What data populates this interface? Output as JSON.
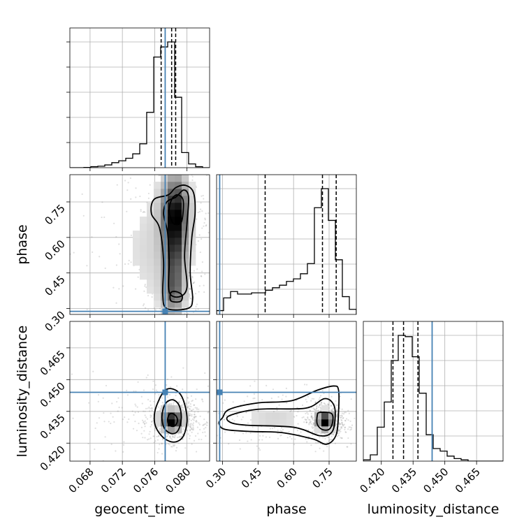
{
  "chart_data": {
    "type": "corner",
    "parameters": [
      "geocent_time",
      "phase",
      "luminosity_distance"
    ],
    "colors": {
      "truth": "#4682b4",
      "hist": "#000000",
      "contour": "#000000",
      "grid": "#b0b0b0",
      "scatter": "#808080"
    },
    "grid": true,
    "axes": {
      "geocent_time": {
        "range": [
          0.0655,
          0.0828
        ],
        "ticks": [
          0.068,
          0.072,
          0.076,
          0.08
        ],
        "tick_labels": [
          "0.068",
          "0.072",
          "0.076",
          "0.080"
        ],
        "label": "geocent_time"
      },
      "phase": {
        "range": [
          0.275,
          0.865
        ],
        "ticks": [
          0.3,
          0.45,
          0.6,
          0.75
        ],
        "tick_labels": [
          "0.30",
          "0.45",
          "0.60",
          "0.75"
        ],
        "label": "phase"
      },
      "luminosity_distance": {
        "range": [
          0.4115,
          0.4775
        ],
        "ticks": [
          0.42,
          0.435,
          0.45,
          0.465
        ],
        "tick_labels": [
          "0.420",
          "0.435",
          "0.450",
          "0.465"
        ],
        "label": "luminosity_distance"
      }
    },
    "truths": {
      "geocent_time": 0.0773,
      "phase": 0.288,
      "luminosity_distance": 0.444
    },
    "histograms": {
      "geocent_time": {
        "edges": [
          0.0655,
          0.06636,
          0.06723,
          0.06809,
          0.06896,
          0.06982,
          0.07069,
          0.07155,
          0.07242,
          0.07328,
          0.07415,
          0.07501,
          0.07588,
          0.07674,
          0.07761,
          0.07847,
          0.07934,
          0.0802,
          0.08107,
          0.08193,
          0.0828
        ],
        "counts": [
          0.0,
          0.0,
          0.002,
          0.008,
          0.012,
          0.022,
          0.04,
          0.055,
          0.075,
          0.11,
          0.19,
          0.44,
          0.88,
          0.96,
          1.0,
          0.56,
          0.12,
          0.03,
          0.008,
          0.0
        ],
        "quantiles": [
          0.0768,
          0.0781,
          0.0786
        ]
      },
      "phase": {
        "edges": [
          0.275,
          0.3045,
          0.334,
          0.3635,
          0.393,
          0.4225,
          0.452,
          0.4815,
          0.511,
          0.5405,
          0.57,
          0.5995,
          0.629,
          0.6585,
          0.688,
          0.7175,
          0.747,
          0.7765,
          0.806,
          0.8355,
          0.865
        ],
        "counts": [
          0.03,
          0.13,
          0.18,
          0.16,
          0.16,
          0.17,
          0.17,
          0.19,
          0.21,
          0.23,
          0.26,
          0.28,
          0.32,
          0.4,
          0.84,
          0.99,
          0.74,
          0.43,
          0.14,
          0.04
        ],
        "quantiles": [
          0.48,
          0.722,
          0.78
        ]
      },
      "luminosity_distance": {
        "edges": [
          0.4115,
          0.4148,
          0.4181,
          0.4214,
          0.4247,
          0.428,
          0.4313,
          0.4346,
          0.4379,
          0.4412,
          0.4445,
          0.4478,
          0.4511,
          0.4544,
          0.4577,
          0.461,
          0.4643,
          0.4676,
          0.4709,
          0.4742,
          0.4775
        ],
        "counts": [
          0.01,
          0.05,
          0.27,
          0.47,
          0.8,
          1.0,
          0.99,
          0.83,
          0.54,
          0.21,
          0.1,
          0.08,
          0.04,
          0.02,
          0.01,
          0.0,
          0.0,
          0.0,
          0.0,
          0.0
        ],
        "quantiles": [
          0.4255,
          0.4305,
          0.4373
        ]
      }
    },
    "densities": [
      {
        "x": "geocent_time",
        "y": "phase",
        "core": [
          [
            0.0786,
            0.72,
            0.0012,
            0.11,
            0.6
          ],
          [
            0.0784,
            0.5,
            0.0009,
            0.13,
            0.4
          ],
          [
            0.0783,
            0.36,
            0.001,
            0.06,
            0.22
          ],
          [
            0.0765,
            0.55,
            0.004,
            0.22,
            0.2
          ]
        ],
        "contours": [
          [
            [
              0.0798,
              0.82
            ],
            [
              0.0808,
              0.79
            ],
            [
              0.081,
              0.7
            ],
            [
              0.0806,
              0.6
            ],
            [
              0.0804,
              0.45
            ],
            [
              0.0807,
              0.34
            ],
            [
              0.0801,
              0.3
            ],
            [
              0.0775,
              0.3
            ],
            [
              0.077,
              0.36
            ],
            [
              0.0771,
              0.5
            ],
            [
              0.0766,
              0.64
            ],
            [
              0.0756,
              0.7
            ],
            [
              0.0759,
              0.76
            ],
            [
              0.0777,
              0.78
            ],
            [
              0.0786,
              0.81
            ]
          ],
          [
            [
              0.0796,
              0.8
            ],
            [
              0.0802,
              0.77
            ],
            [
              0.08,
              0.66
            ],
            [
              0.0797,
              0.52
            ],
            [
              0.08,
              0.39
            ],
            [
              0.0791,
              0.35
            ],
            [
              0.0778,
              0.37
            ],
            [
              0.0778,
              0.5
            ],
            [
              0.0776,
              0.62
            ],
            [
              0.0771,
              0.7
            ],
            [
              0.0775,
              0.75
            ],
            [
              0.0786,
              0.77
            ]
          ],
          [
            [
              0.0788,
              0.78
            ],
            [
              0.0795,
              0.76
            ],
            [
              0.0795,
              0.7
            ],
            [
              0.0792,
              0.66
            ],
            [
              0.0783,
              0.66
            ],
            [
              0.0778,
              0.71
            ],
            [
              0.0781,
              0.76
            ]
          ],
          [
            [
              0.0779,
              0.35
            ],
            [
              0.0781,
              0.33
            ],
            [
              0.0792,
              0.33
            ],
            [
              0.0794,
              0.355
            ],
            [
              0.0788,
              0.37
            ],
            [
              0.0781,
              0.37
            ]
          ]
        ]
      },
      {
        "x": "geocent_time",
        "y": "luminosity_distance",
        "core": [
          [
            0.0782,
            0.4305,
            0.0009,
            0.0032,
            1.0
          ],
          [
            0.0775,
            0.4335,
            0.003,
            0.0065,
            0.2
          ]
        ],
        "contours": [
          [
            [
              0.0782,
              0.4456
            ],
            [
              0.0792,
              0.443
            ],
            [
              0.0798,
              0.437
            ],
            [
              0.08,
              0.43
            ],
            [
              0.0795,
              0.423
            ],
            [
              0.0784,
              0.4205
            ],
            [
              0.0771,
              0.4225
            ],
            [
              0.0761,
              0.428
            ],
            [
              0.076,
              0.4345
            ],
            [
              0.0766,
              0.441
            ],
            [
              0.0773,
              0.445
            ]
          ],
          [
            [
              0.0782,
              0.4405
            ],
            [
              0.079,
              0.438
            ],
            [
              0.0793,
              0.432
            ],
            [
              0.0789,
              0.426
            ],
            [
              0.0781,
              0.4245
            ],
            [
              0.0772,
              0.427
            ],
            [
              0.0769,
              0.4325
            ],
            [
              0.0773,
              0.4385
            ]
          ],
          [
            [
              0.0782,
              0.434
            ],
            [
              0.0787,
              0.4325
            ],
            [
              0.0788,
              0.43
            ],
            [
              0.0784,
              0.428
            ],
            [
              0.0778,
              0.4285
            ],
            [
              0.0776,
              0.431
            ],
            [
              0.0778,
              0.4335
            ]
          ]
        ]
      },
      {
        "x": "phase",
        "y": "luminosity_distance",
        "core": [
          [
            0.735,
            0.4305,
            0.025,
            0.003,
            1.0
          ],
          [
            0.52,
            0.4315,
            0.12,
            0.0045,
            0.25
          ]
        ],
        "contours": [
          [
            [
              0.3,
              0.432
            ],
            [
              0.33,
              0.436
            ],
            [
              0.45,
              0.439
            ],
            [
              0.59,
              0.44
            ],
            [
              0.7,
              0.445
            ],
            [
              0.77,
              0.447
            ],
            [
              0.79,
              0.445
            ],
            [
              0.79,
              0.435
            ],
            [
              0.78,
              0.424
            ],
            [
              0.74,
              0.4195
            ],
            [
              0.68,
              0.422
            ],
            [
              0.55,
              0.425
            ],
            [
              0.42,
              0.4255
            ],
            [
              0.31,
              0.4265
            ],
            [
              0.285,
              0.4295
            ]
          ],
          [
            [
              0.33,
              0.433
            ],
            [
              0.45,
              0.436
            ],
            [
              0.65,
              0.4365
            ],
            [
              0.73,
              0.441
            ],
            [
              0.77,
              0.438
            ],
            [
              0.775,
              0.431
            ],
            [
              0.76,
              0.425
            ],
            [
              0.71,
              0.4235
            ],
            [
              0.6,
              0.4275
            ],
            [
              0.4,
              0.4285
            ],
            [
              0.33,
              0.43
            ]
          ],
          [
            [
              0.71,
              0.4345
            ],
            [
              0.76,
              0.434
            ],
            [
              0.765,
              0.43
            ],
            [
              0.75,
              0.4265
            ],
            [
              0.72,
              0.4265
            ],
            [
              0.7,
              0.429
            ],
            [
              0.7,
              0.433
            ]
          ]
        ]
      }
    ]
  }
}
